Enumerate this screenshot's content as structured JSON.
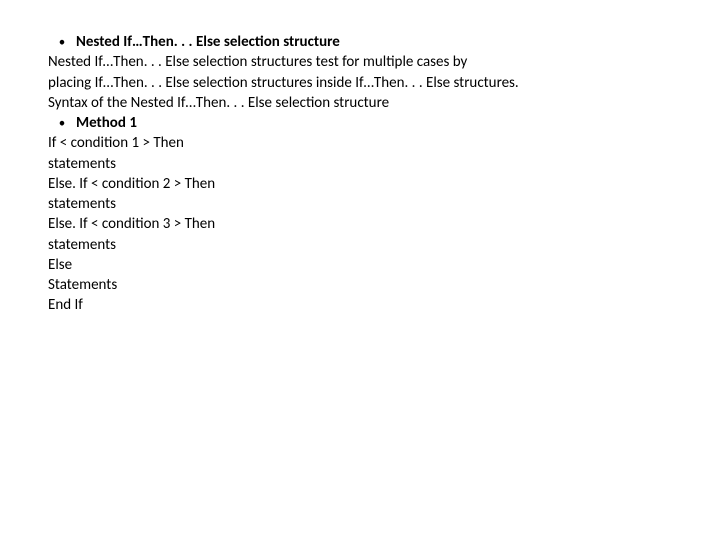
{
  "text_color": "#000000",
  "background_color": "#ffffff",
  "font_family": "Calibri, Arial, sans-serif",
  "font_size": 15,
  "bullet1": {
    "marker": "•",
    "text": "Nested If…Then. . . Else selection structure"
  },
  "paragraph1_line1": "Nested If…Then. . . Else selection structures test for multiple cases by",
  "paragraph1_line2": "placing If…Then. . . Else selection structures inside If…Then. . . Else structures.",
  "paragraph2": "Syntax of the Nested If…Then. . . Else selection structure",
  "bullet2": {
    "marker": "•",
    "text": "Method 1"
  },
  "code_lines": [
    "If < condition 1 > Then",
    "statements",
    "Else. If < condition 2 > Then",
    "statements",
    "Else. If < condition 3 > Then",
    "statements",
    "Else",
    "Statements",
    "End If"
  ]
}
